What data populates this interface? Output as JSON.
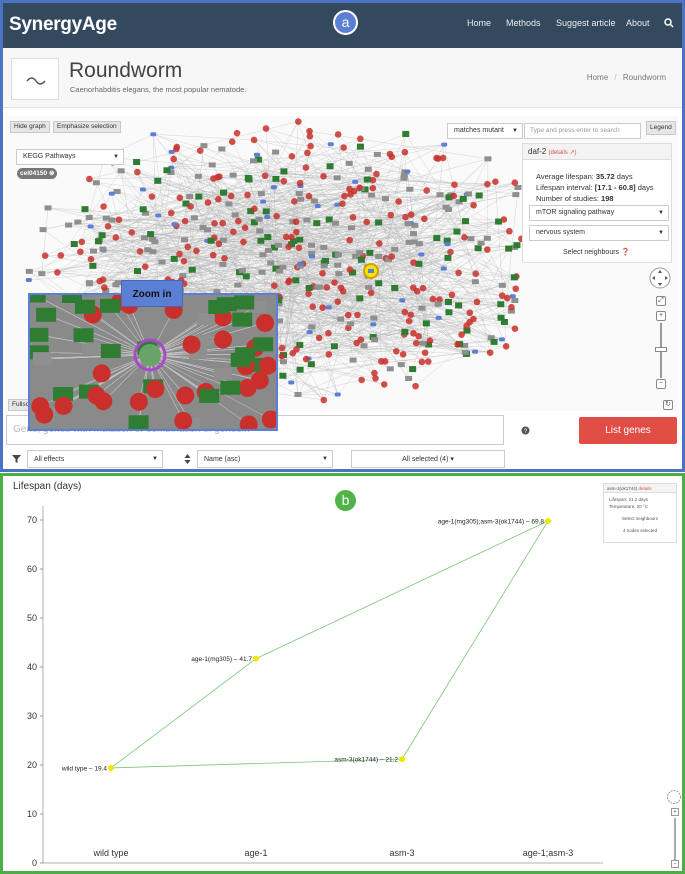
{
  "navbar": {
    "brand": "SynergyAge",
    "links": [
      "Home",
      "Methods",
      "Suggest article",
      "About"
    ],
    "search_icon": "search-icon"
  },
  "panel_labels": {
    "a": "a",
    "b": "b"
  },
  "header": {
    "title": "Roundworm",
    "subtitle": "Caenorhabditis elegans, the most popular nematode.",
    "breadcrumb": [
      "Home",
      "Roundworm"
    ],
    "breadcrumb_sep": "/",
    "logo_icon": "worm-icon"
  },
  "graph_toolbar": {
    "hide_graph": "Hide graph",
    "emphasize": "Emphasize selection",
    "match_select": "matches mutant",
    "search_placeholder": "Type and press enter to search",
    "legend": "Legend",
    "kegg_select": "KEGG Pathways",
    "tag": "cel04150",
    "fullscreen": "Fullscreen",
    "zoom_label": "Zoom in"
  },
  "info_panel": {
    "gene": "daf-2",
    "details_link": "(details ↗)",
    "avg_label": "Average lifespan:",
    "avg_value": "35.72",
    "avg_unit": "days",
    "interval_label": "Lifespan interval:",
    "interval_value": "[17.1 - 60.8]",
    "interval_unit": "days",
    "studies_label": "Number of studies:",
    "studies_value": "198",
    "pathway_select": "mTOR signaling pathway",
    "tissue_select": "nervous system",
    "neighbours_btn": "Select neighbours ❓"
  },
  "bottom_controls": {
    "search_placeholder": "Gene, genes with mutation or combination of genes...",
    "help_icon": "question-icon",
    "list_genes": "List genes",
    "filter_icon": "filter-icon",
    "effects_select": "All effects",
    "sort_icon": "sort-icon",
    "sort_select": "Name (asc)",
    "selected_btn": "All selected (4) ▾"
  },
  "colors": {
    "nav_bg": "#34495e",
    "node_red": "#c9302c",
    "node_green": "#2e7d32",
    "node_gray": "#8f8f8f",
    "accent_blue": "#5b7fd4",
    "accent_green": "#4cae45",
    "list_btn": "#e04d45"
  },
  "chart_data": {
    "type": "line",
    "title": "Lifespan (days)",
    "categories": [
      "wild type",
      "age-1",
      "asm-3",
      "age-1;asm-3"
    ],
    "ylim": [
      0,
      70
    ],
    "yticks": [
      0,
      10,
      20,
      30,
      40,
      50,
      60,
      70
    ],
    "points": [
      {
        "label": "wild type – 19.4",
        "category": "wild type",
        "y": 19.4
      },
      {
        "label": "age-1(mg305) – 41.7",
        "category": "age-1",
        "y": 41.7
      },
      {
        "label": "asm-3(ok1744) – 21.2",
        "category": "asm-3",
        "y": 21.2
      },
      {
        "label": "age-1(mg305);asm-3(ok1744) – 69.8",
        "category": "age-1;asm-3",
        "y": 69.8
      }
    ],
    "edges": [
      [
        0,
        1
      ],
      [
        0,
        2
      ],
      [
        1,
        3
      ],
      [
        2,
        3
      ]
    ],
    "point_color": "#f2e600",
    "edge_color": "#7cc576",
    "mini_panel": {
      "gene": "asm-3(ok1744)",
      "details": "details",
      "lifespan": "Lifespan: 21.2 days",
      "temperature": "Temperature: 20 °C",
      "neighbours": "Select neighbours",
      "selected": "4 nodes selected"
    }
  }
}
